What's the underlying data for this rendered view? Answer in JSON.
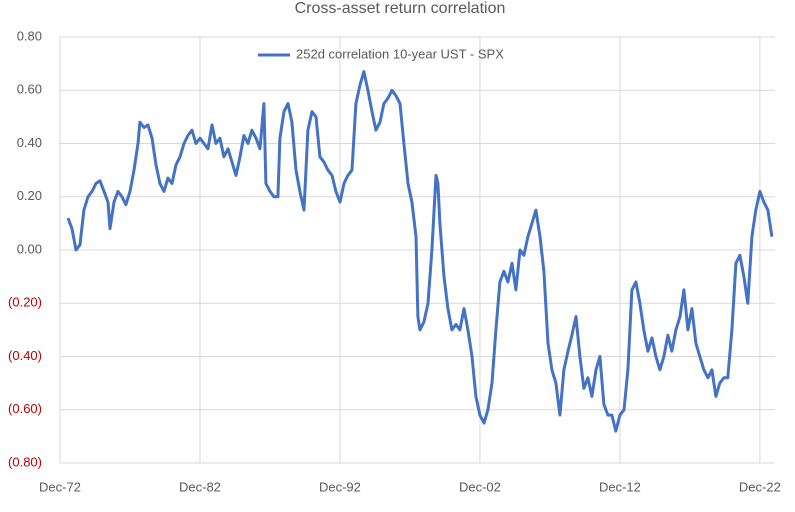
{
  "chart_data": {
    "type": "line",
    "title": "Cross-asset return correlation",
    "x": [
      1973.49,
      1973.78,
      1974.06,
      1974.35,
      1974.63,
      1974.92,
      1975.21,
      1975.49,
      1975.78,
      1976.06,
      1976.35,
      1976.49,
      1976.78,
      1977.06,
      1977.35,
      1977.63,
      1977.92,
      1978.21,
      1978.49,
      1978.63,
      1978.92,
      1979.21,
      1979.49,
      1979.78,
      1980.06,
      1980.35,
      1980.63,
      1980.92,
      1981.21,
      1981.49,
      1981.78,
      1982.06,
      1982.35,
      1982.63,
      1982.92,
      1983.21,
      1983.49,
      1983.78,
      1984.06,
      1984.35,
      1984.63,
      1984.92,
      1985.21,
      1985.49,
      1985.78,
      1986.06,
      1986.35,
      1986.63,
      1986.92,
      1987.21,
      1987.49,
      1987.63,
      1987.92,
      1988.21,
      1988.49,
      1988.63,
      1988.92,
      1989.21,
      1989.49,
      1989.78,
      1990.06,
      1990.35,
      1990.63,
      1990.92,
      1991.21,
      1991.49,
      1991.78,
      1992.06,
      1992.35,
      1992.63,
      1992.92,
      1993.21,
      1993.49,
      1993.78,
      1994.06,
      1994.35,
      1994.63,
      1994.92,
      1995.21,
      1995.49,
      1995.78,
      1996.06,
      1996.35,
      1996.63,
      1996.92,
      1997.21,
      1997.49,
      1997.78,
      1998.06,
      1998.35,
      1998.49,
      1998.63,
      1998.92,
      1999.21,
      1999.49,
      1999.78,
      1999.92,
      2000.06,
      2000.35,
      2000.63,
      2000.92,
      2001.21,
      2001.49,
      2001.78,
      2002.06,
      2002.35,
      2002.63,
      2002.92,
      2003.21,
      2003.49,
      2003.78,
      2004.06,
      2004.35,
      2004.63,
      2004.92,
      2005.21,
      2005.49,
      2005.78,
      2006.06,
      2006.35,
      2006.63,
      2006.92,
      2007.21,
      2007.49,
      2007.78,
      2008.06,
      2008.35,
      2008.63,
      2008.92,
      2009.21,
      2009.49,
      2009.78,
      2010.06,
      2010.35,
      2010.63,
      2010.92,
      2011.21,
      2011.49,
      2011.78,
      2012.06,
      2012.35,
      2012.63,
      2012.92,
      2013.21,
      2013.49,
      2013.78,
      2014.06,
      2014.35,
      2014.63,
      2014.92,
      2015.21,
      2015.49,
      2015.78,
      2016.06,
      2016.35,
      2016.63,
      2016.92,
      2017.21,
      2017.49,
      2017.78,
      2018.06,
      2018.35,
      2018.63,
      2018.92,
      2019.21,
      2019.49,
      2019.78,
      2020.06,
      2020.35,
      2020.63,
      2020.92,
      2021.21,
      2021.49,
      2021.78,
      2022.06,
      2022.35,
      2022.63,
      2022.92,
      2023.21,
      2023.49,
      2023.78
    ],
    "series": [
      {
        "name": "252d correlation 10-year UST - SPX",
        "color": "#4472c4",
        "values": [
          0.12,
          0.08,
          0.0,
          0.02,
          0.15,
          0.2,
          0.22,
          0.25,
          0.26,
          0.22,
          0.18,
          0.08,
          0.18,
          0.22,
          0.2,
          0.17,
          0.22,
          0.3,
          0.4,
          0.48,
          0.46,
          0.47,
          0.42,
          0.32,
          0.25,
          0.22,
          0.27,
          0.25,
          0.32,
          0.35,
          0.4,
          0.43,
          0.45,
          0.4,
          0.42,
          0.4,
          0.38,
          0.47,
          0.4,
          0.42,
          0.35,
          0.38,
          0.33,
          0.28,
          0.35,
          0.43,
          0.4,
          0.45,
          0.42,
          0.38,
          0.55,
          0.25,
          0.22,
          0.2,
          0.2,
          0.42,
          0.52,
          0.55,
          0.48,
          0.3,
          0.22,
          0.15,
          0.45,
          0.52,
          0.5,
          0.35,
          0.33,
          0.3,
          0.28,
          0.22,
          0.18,
          0.25,
          0.28,
          0.3,
          0.55,
          0.62,
          0.67,
          0.6,
          0.52,
          0.45,
          0.48,
          0.55,
          0.57,
          0.6,
          0.58,
          0.55,
          0.4,
          0.25,
          0.18,
          0.05,
          -0.25,
          -0.3,
          -0.27,
          -0.2,
          0.0,
          0.28,
          0.25,
          0.1,
          -0.1,
          -0.22,
          -0.3,
          -0.28,
          -0.3,
          -0.22,
          -0.3,
          -0.4,
          -0.55,
          -0.62,
          -0.65,
          -0.6,
          -0.5,
          -0.3,
          -0.12,
          -0.08,
          -0.12,
          -0.05,
          -0.15,
          0.0,
          -0.02,
          0.05,
          0.1,
          0.15,
          0.05,
          -0.08,
          -0.35,
          -0.45,
          -0.5,
          -0.62,
          -0.45,
          -0.38,
          -0.32,
          -0.25,
          -0.4,
          -0.52,
          -0.48,
          -0.55,
          -0.45,
          -0.4,
          -0.58,
          -0.62,
          -0.62,
          -0.68,
          -0.62,
          -0.6,
          -0.45,
          -0.15,
          -0.12,
          -0.2,
          -0.3,
          -0.38,
          -0.33,
          -0.4,
          -0.45,
          -0.4,
          -0.32,
          -0.38,
          -0.3,
          -0.25,
          -0.15,
          -0.3,
          -0.22,
          -0.35,
          -0.4,
          -0.45,
          -0.48,
          -0.45,
          -0.55,
          -0.5,
          -0.48,
          -0.48,
          -0.3,
          -0.05,
          -0.02,
          -0.1,
          -0.2,
          0.05,
          0.15,
          0.22,
          0.18,
          0.15,
          0.05
        ]
      }
    ],
    "xlim": [
      1972.92,
      2024.0
    ],
    "xticks": [
      {
        "value": 1972.92,
        "label": "Dec-72"
      },
      {
        "value": 1982.92,
        "label": "Dec-82"
      },
      {
        "value": 1992.92,
        "label": "Dec-92"
      },
      {
        "value": 2002.92,
        "label": "Dec-02"
      },
      {
        "value": 2012.92,
        "label": "Dec-12"
      },
      {
        "value": 2022.92,
        "label": "Dec-22"
      }
    ],
    "ylim": [
      -0.8,
      0.8
    ],
    "yticks": [
      {
        "value": 0.8,
        "label": "0.80"
      },
      {
        "value": 0.6,
        "label": "0.60"
      },
      {
        "value": 0.4,
        "label": "0.40"
      },
      {
        "value": 0.2,
        "label": "0.20"
      },
      {
        "value": 0,
        "label": "0.00"
      },
      {
        "value": -0.2,
        "label": "(0.20)"
      },
      {
        "value": -0.4,
        "label": "(0.40)"
      },
      {
        "value": -0.6,
        "label": "(0.60)"
      },
      {
        "value": -0.8,
        "label": "(0.80)"
      }
    ],
    "negative_tick_color": "#c00000",
    "grid": true,
    "legend": "top"
  }
}
